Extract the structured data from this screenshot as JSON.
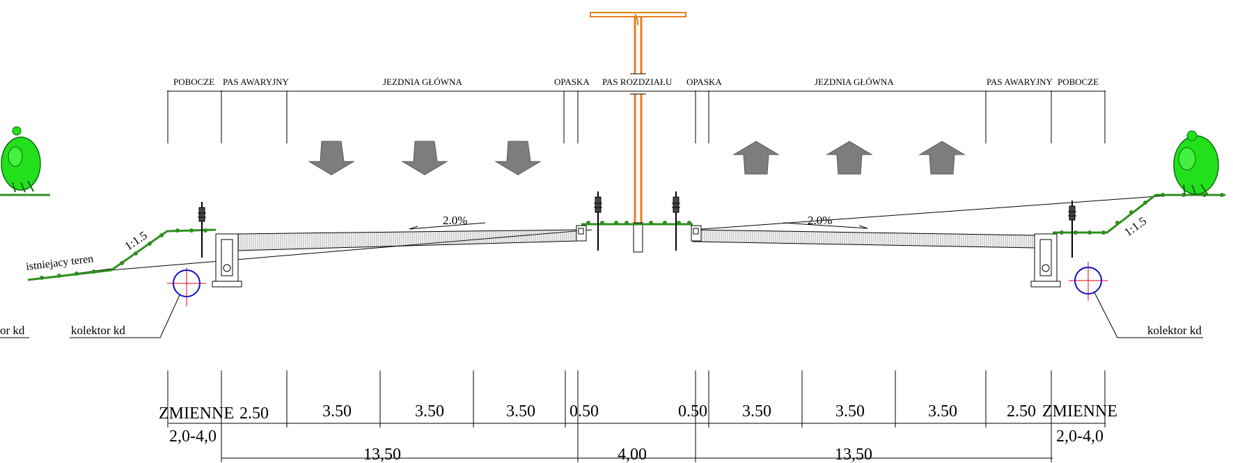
{
  "lanes": {
    "top": {
      "left_shoulder": "POBOCZE",
      "left_emergency": "PAS AWARYJNY",
      "left_carriageway": "JEZDNIA GŁÓWNA",
      "left_edge": "OPASKA",
      "median": "PAS  ROZDZIAŁU",
      "right_edge": "OPASKA",
      "right_carriageway": "JEZDNIA GŁÓWNA",
      "right_emergency": "PAS AWARYJNY",
      "right_shoulder": "POBOCZE"
    }
  },
  "slopes": {
    "left_crossfall": "2.0%",
    "right_crossfall": "2.0%",
    "left_embankment": "1:1.5",
    "right_embankment": "1:1.5"
  },
  "labels": {
    "existing_terrain": "istniejacy teren",
    "collector_left": "kolektor kd",
    "collector_right": "kolektor kd",
    "collector_left_edge": "or kd"
  },
  "dimensions": {
    "row1": [
      "ZMIENNE",
      "2.50",
      "3.50",
      "3.50",
      "3.50",
      "0.50",
      "0.50",
      "3.50",
      "3.50",
      "3.50",
      "2.50",
      "ZMIENNE"
    ],
    "var_left": "2,0-4,0",
    "var_right": "2,0-4,0",
    "total_left": "13,50",
    "total_median": "4,00",
    "total_right": "13,50"
  },
  "colors": {
    "lamp": "#e87d1e",
    "grass": "#2f8f1f",
    "tree": "#22e01c",
    "pipe": "#1010c8",
    "pipe_cross": "#e0001a",
    "arrow": "#7d7d7d"
  }
}
